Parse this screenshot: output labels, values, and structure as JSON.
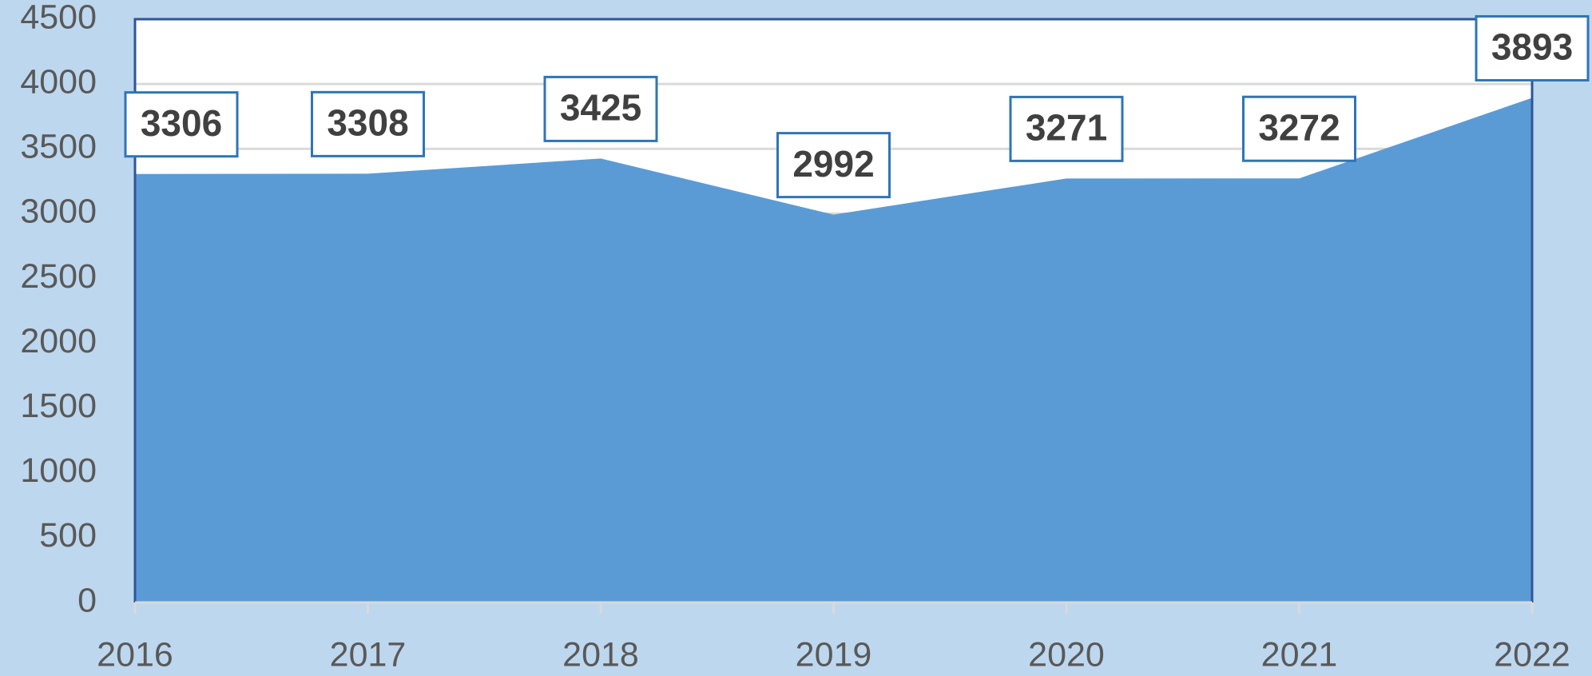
{
  "chart_data": {
    "type": "area",
    "categories": [
      "2016",
      "2017",
      "2018",
      "2019",
      "2020",
      "2021",
      "2022"
    ],
    "values": [
      3306,
      3308,
      3425,
      2992,
      3271,
      3272,
      3893
    ],
    "color": "#5b9bd5",
    "ylim": [
      0,
      4500
    ],
    "yticks": [
      0,
      500,
      1000,
      1500,
      2000,
      2500,
      3000,
      3500,
      4000,
      4500
    ],
    "grid": true,
    "data_labels": true
  }
}
